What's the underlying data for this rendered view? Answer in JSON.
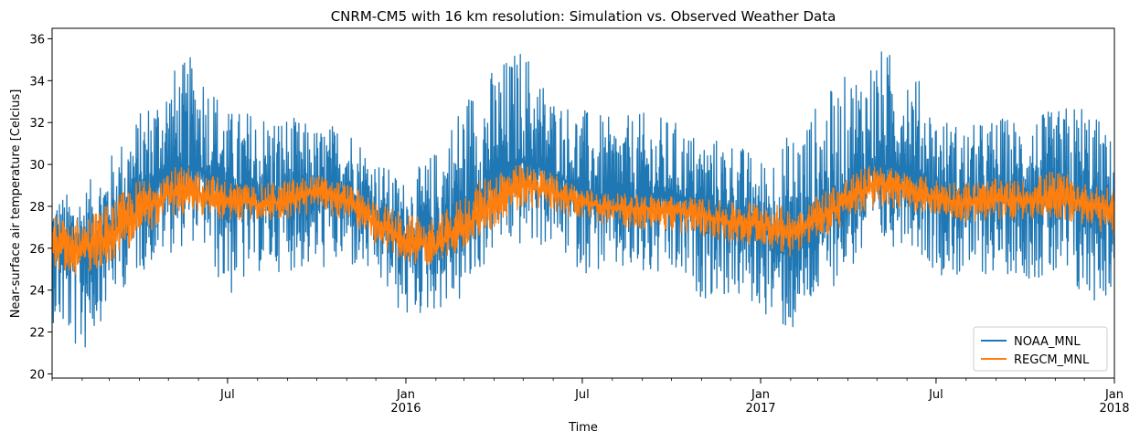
{
  "chart_data": {
    "type": "line",
    "title": "CNRM-CM5 with 16 km resolution: Simulation vs. Observed Weather Data",
    "xlabel": "Time",
    "ylabel": "Near-surface air temperature [Celcius]",
    "xlim": [
      "2015-01-01",
      "2018-01-01"
    ],
    "ylim": [
      19.8,
      36.5
    ],
    "y_ticks": [
      20,
      22,
      24,
      26,
      28,
      30,
      32,
      34,
      36
    ],
    "x_ticks": [
      {
        "date": "2015-07-01",
        "label": "Jul",
        "sublabel": ""
      },
      {
        "date": "2016-01-01",
        "label": "Jan",
        "sublabel": "2016"
      },
      {
        "date": "2016-07-01",
        "label": "Jul",
        "sublabel": ""
      },
      {
        "date": "2017-01-01",
        "label": "Jan",
        "sublabel": "2017"
      },
      {
        "date": "2017-07-01",
        "label": "Jul",
        "sublabel": ""
      },
      {
        "date": "2018-01-01",
        "label": "Jan",
        "sublabel": "2018"
      }
    ],
    "grid": false,
    "legend_position": "lower-right",
    "series": [
      {
        "name": "NOAA_MNL",
        "color": "#1f77b4",
        "envelope": {
          "dates": [
            "2015-01-01",
            "2015-02-01",
            "2015-03-01",
            "2015-04-01",
            "2015-05-01",
            "2015-06-01",
            "2015-07-01",
            "2015-08-01",
            "2015-09-01",
            "2015-10-01",
            "2015-11-01",
            "2015-12-01",
            "2016-01-01",
            "2016-02-01",
            "2016-03-01",
            "2016-04-01",
            "2016-05-01",
            "2016-06-01",
            "2016-07-01",
            "2016-08-01",
            "2016-09-01",
            "2016-10-01",
            "2016-11-01",
            "2016-12-01",
            "2017-01-01",
            "2017-02-01",
            "2017-03-01",
            "2017-04-01",
            "2017-05-01",
            "2017-06-01",
            "2017-07-01",
            "2017-08-01",
            "2017-09-01",
            "2017-10-01",
            "2017-11-01",
            "2017-12-01",
            "2018-01-01"
          ],
          "mean": [
            26.1,
            26.0,
            26.9,
            28.6,
            29.6,
            29.8,
            29.0,
            28.3,
            28.5,
            28.6,
            28.8,
            27.7,
            26.6,
            26.5,
            27.7,
            29.4,
            30.2,
            29.6,
            28.7,
            28.3,
            28.3,
            28.5,
            28.1,
            27.6,
            26.8,
            26.2,
            27.4,
            28.8,
            29.8,
            29.9,
            28.7,
            28.4,
            28.5,
            28.6,
            28.4,
            28.0,
            27.8
          ],
          "max": [
            28.5,
            28.8,
            30.4,
            32.5,
            34.5,
            35.4,
            32.6,
            32.7,
            32.4,
            31.8,
            32.1,
            30.3,
            29.2,
            30.8,
            33.5,
            34.7,
            35.8,
            33.3,
            32.7,
            32.2,
            32.5,
            32.2,
            31.3,
            31.3,
            30.3,
            31.6,
            33.0,
            34.4,
            35.6,
            35.2,
            32.5,
            31.8,
            32.3,
            32.3,
            32.6,
            33.3,
            31.0
          ],
          "min": [
            22.5,
            20.6,
            23.4,
            24.8,
            25.7,
            26.4,
            23.4,
            24.8,
            24.9,
            24.9,
            25.0,
            24.4,
            22.4,
            23.0,
            23.3,
            25.9,
            26.0,
            26.0,
            24.8,
            24.8,
            24.4,
            24.4,
            23.6,
            23.6,
            23.0,
            21.7,
            23.4,
            24.9,
            25.6,
            26.4,
            24.8,
            24.4,
            24.8,
            24.6,
            24.2,
            23.2,
            23.7
          ]
        }
      },
      {
        "name": "REGCM_MNL",
        "color": "#ff7f0e",
        "envelope": {
          "dates": [
            "2015-01-01",
            "2015-02-01",
            "2015-03-01",
            "2015-04-01",
            "2015-05-01",
            "2015-06-01",
            "2015-07-01",
            "2015-08-01",
            "2015-09-01",
            "2015-10-01",
            "2015-11-01",
            "2015-12-01",
            "2016-01-01",
            "2016-02-01",
            "2016-03-01",
            "2016-04-01",
            "2016-05-01",
            "2016-06-01",
            "2016-07-01",
            "2016-08-01",
            "2016-09-01",
            "2016-10-01",
            "2016-11-01",
            "2016-12-01",
            "2017-01-01",
            "2017-02-01",
            "2017-03-01",
            "2017-04-01",
            "2017-05-01",
            "2017-06-01",
            "2017-07-01",
            "2017-08-01",
            "2017-09-01",
            "2017-10-01",
            "2017-11-01",
            "2017-12-01",
            "2018-01-01"
          ],
          "mean": [
            26.2,
            26.0,
            26.5,
            27.8,
            28.6,
            28.6,
            28.3,
            28.1,
            28.2,
            28.8,
            28.3,
            27.2,
            26.3,
            26.1,
            27.0,
            28.2,
            29.0,
            28.7,
            28.2,
            27.9,
            27.9,
            27.8,
            27.6,
            27.2,
            27.2,
            26.7,
            27.4,
            28.3,
            29.2,
            28.8,
            28.4,
            28.1,
            28.3,
            28.3,
            28.4,
            28.2,
            27.8
          ],
          "max": [
            27.6,
            27.4,
            28.2,
            29.3,
            29.9,
            29.8,
            29.2,
            29.0,
            29.3,
            29.5,
            29.1,
            28.3,
            27.6,
            27.4,
            28.6,
            29.8,
            30.0,
            29.6,
            28.9,
            28.6,
            28.6,
            28.5,
            28.4,
            28.2,
            28.3,
            27.9,
            28.6,
            29.5,
            30.1,
            29.6,
            29.3,
            29.2,
            29.3,
            29.2,
            29.8,
            29.1,
            28.8
          ],
          "min": [
            25.0,
            24.7,
            25.3,
            26.4,
            27.5,
            27.6,
            27.3,
            27.3,
            27.4,
            27.6,
            27.4,
            26.2,
            25.3,
            25.2,
            26.0,
            27.0,
            27.9,
            27.8,
            27.2,
            27.1,
            26.9,
            26.8,
            26.6,
            26.2,
            26.2,
            25.6,
            26.3,
            27.2,
            28.0,
            27.8,
            27.6,
            27.2,
            27.2,
            27.4,
            27.4,
            27.1,
            26.5
          ]
        }
      }
    ]
  }
}
